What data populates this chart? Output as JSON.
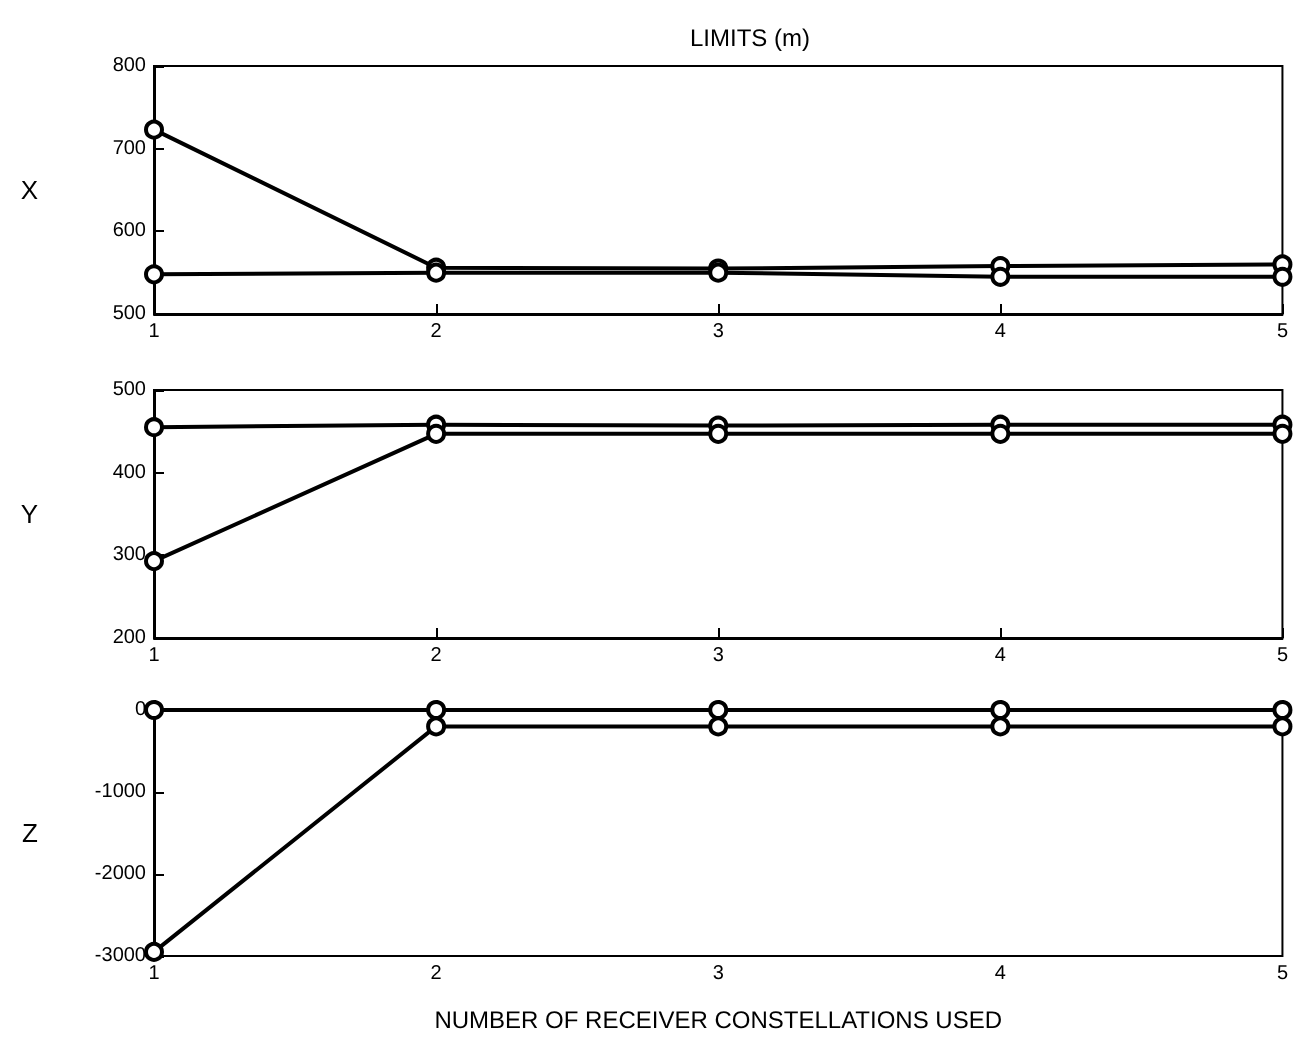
{
  "chart_data": [
    {
      "type": "line",
      "title": "LIMITS (m)",
      "ylabel": "X",
      "x": [
        1,
        2,
        3,
        4,
        5
      ],
      "xlim": [
        1,
        5
      ],
      "xticks": [
        1,
        2,
        3,
        4,
        5
      ],
      "ylim": [
        500,
        800
      ],
      "yticks": [
        500,
        600,
        700,
        800
      ],
      "marker": "circle",
      "grid": false,
      "series": [
        {
          "color": "#000000",
          "values": [
            723,
            556,
            555,
            558,
            560
          ]
        },
        {
          "color": "#000000",
          "values": [
            548,
            550,
            550,
            545,
            545
          ]
        }
      ]
    },
    {
      "type": "line",
      "ylabel": "Y",
      "x": [
        1,
        2,
        3,
        4,
        5
      ],
      "xlim": [
        1,
        5
      ],
      "xticks": [
        1,
        2,
        3,
        4,
        5
      ],
      "ylim": [
        200,
        500
      ],
      "yticks": [
        200,
        300,
        400,
        500
      ],
      "marker": "circle",
      "grid": false,
      "series": [
        {
          "color": "#000000",
          "values": [
            455,
            458,
            457,
            458,
            458
          ]
        },
        {
          "color": "#000000",
          "values": [
            293,
            447,
            447,
            447,
            447
          ]
        }
      ]
    },
    {
      "type": "line",
      "ylabel": "Z",
      "xlabel": "NUMBER OF RECEIVER CONSTELLATIONS USED",
      "x": [
        1,
        2,
        3,
        4,
        5
      ],
      "xlim": [
        1,
        5
      ],
      "xticks": [
        1,
        2,
        3,
        4,
        5
      ],
      "ylim": [
        -3000,
        0
      ],
      "yticks": [
        -3000,
        -2000,
        -1000,
        0
      ],
      "marker": "circle",
      "grid": false,
      "series": [
        {
          "color": "#000000",
          "values": [
            0,
            0,
            0,
            0,
            0
          ]
        },
        {
          "color": "#000000",
          "values": [
            -2950,
            -200,
            -200,
            -200,
            -200
          ]
        }
      ]
    }
  ]
}
